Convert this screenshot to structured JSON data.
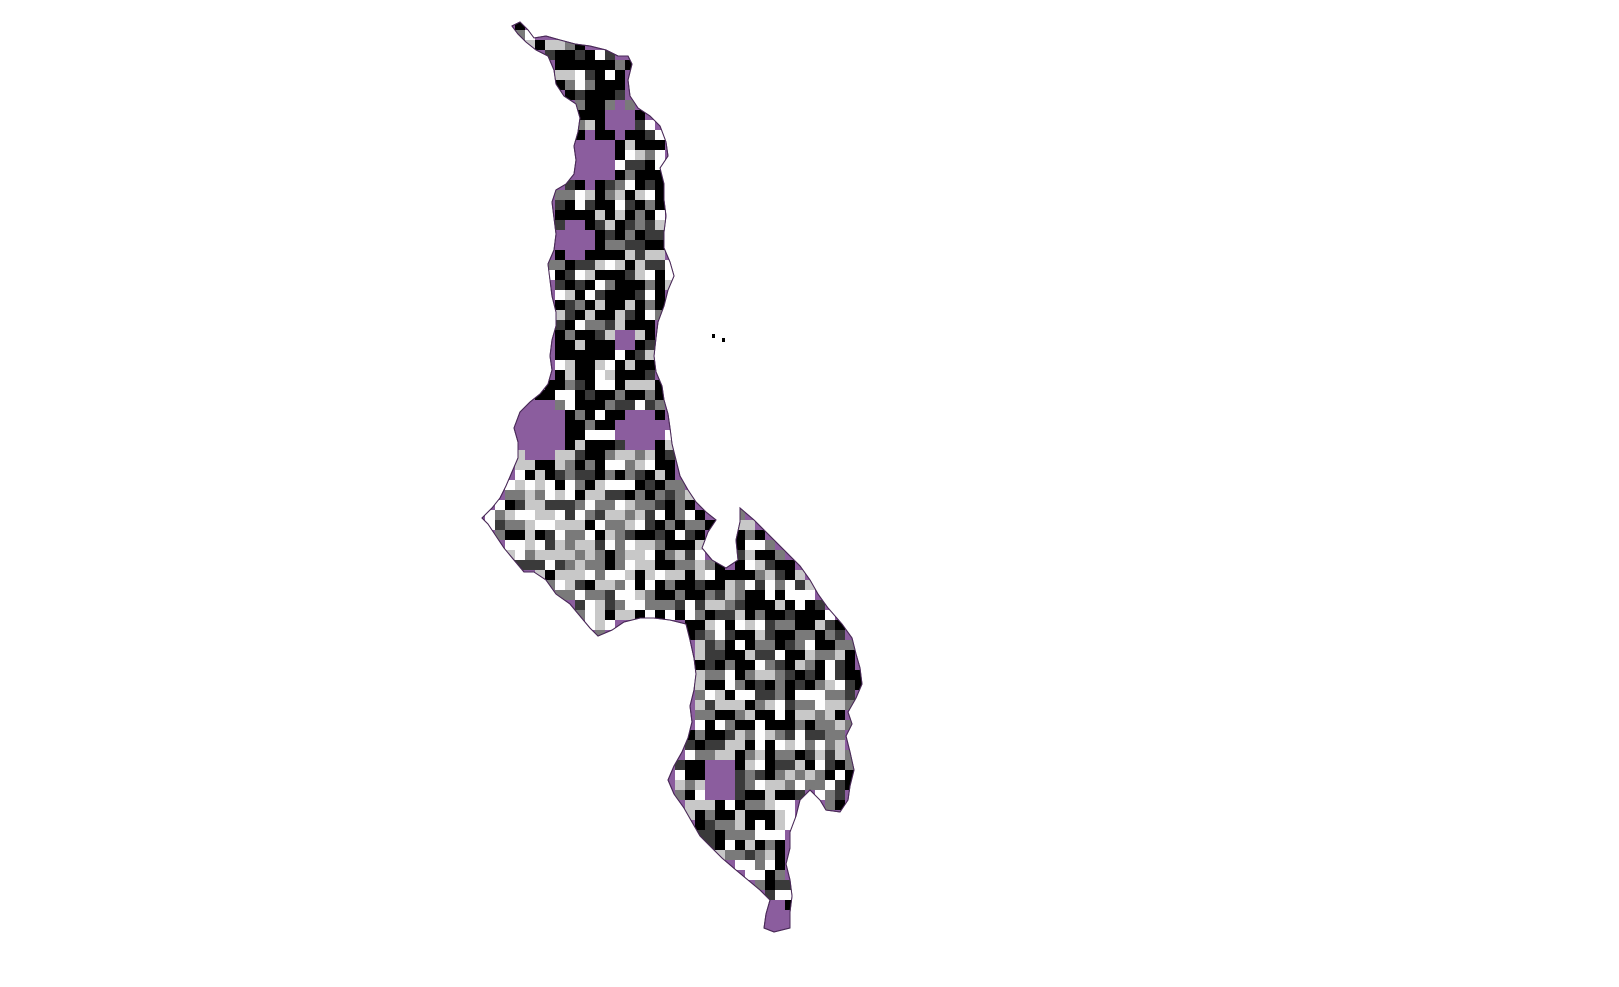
{
  "map": {
    "colors": {
      "background": "#ffffff",
      "region_fill": "#8b5d9e",
      "region_stroke": "#4a2a58",
      "grid_classes": [
        "#000000",
        "#3a3a3a",
        "#7a7a7a",
        "#c8c8c8",
        "#ffffff"
      ]
    },
    "layers": [
      "country-boundary-polygons",
      "raster-grid-overlay"
    ],
    "legend": null,
    "title": ""
  }
}
